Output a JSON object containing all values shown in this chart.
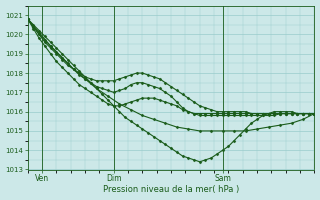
{
  "xlabel": "Pression niveau de la mer( hPa )",
  "bg_color": "#cce8e8",
  "grid_color": "#99cccc",
  "line_color": "#1a5c1a",
  "ylim": [
    1013.0,
    1021.5
  ],
  "yticks": [
    1013,
    1014,
    1015,
    1016,
    1017,
    1018,
    1019,
    1020,
    1021
  ],
  "xlim": [
    0,
    100
  ],
  "xtick_positions": [
    5,
    30,
    68
  ],
  "xtick_labels": [
    "Ven",
    "Dim",
    "Sam"
  ],
  "series": [
    {
      "x": [
        0,
        2,
        4,
        6,
        8,
        10,
        12,
        14,
        16,
        18,
        20,
        22,
        24,
        26,
        28,
        30,
        32,
        34,
        36,
        38,
        40,
        42,
        44,
        46,
        48,
        50,
        52,
        54,
        56,
        58,
        60,
        62,
        64,
        66,
        68,
        70,
        72,
        74,
        76,
        78,
        80,
        82,
        84,
        86,
        88,
        90,
        92,
        94,
        96,
        98,
        100
      ],
      "y": [
        1020.8,
        1020.5,
        1020.2,
        1019.9,
        1019.6,
        1019.3,
        1019.0,
        1018.7,
        1018.4,
        1018.1,
        1017.8,
        1017.5,
        1017.2,
        1016.9,
        1016.6,
        1016.3,
        1016.0,
        1015.7,
        1015.5,
        1015.3,
        1015.1,
        1014.9,
        1014.7,
        1014.5,
        1014.3,
        1014.1,
        1013.9,
        1013.7,
        1013.6,
        1013.5,
        1013.4,
        1013.5,
        1013.6,
        1013.8,
        1014.0,
        1014.2,
        1014.5,
        1014.8,
        1015.1,
        1015.4,
        1015.6,
        1015.8,
        1015.9,
        1016.0,
        1016.0,
        1016.0,
        1016.0,
        1015.9,
        1015.9,
        1015.9,
        1015.9
      ]
    },
    {
      "x": [
        0,
        2,
        4,
        6,
        8,
        10,
        12,
        14,
        16,
        18,
        20,
        22,
        24,
        26,
        28,
        30,
        32,
        34,
        36,
        38,
        40,
        42,
        44,
        46,
        48,
        50,
        52,
        54,
        56,
        58,
        60,
        62,
        64,
        66,
        68,
        70,
        72,
        74,
        76,
        78,
        80,
        82,
        84,
        86,
        88,
        90,
        92,
        94,
        96,
        98,
        100
      ],
      "y": [
        1020.8,
        1020.4,
        1020.0,
        1019.7,
        1019.4,
        1019.1,
        1018.8,
        1018.5,
        1018.2,
        1017.9,
        1017.7,
        1017.5,
        1017.3,
        1017.2,
        1017.1,
        1017.0,
        1017.1,
        1017.2,
        1017.4,
        1017.5,
        1017.5,
        1017.4,
        1017.3,
        1017.2,
        1017.0,
        1016.8,
        1016.5,
        1016.2,
        1016.0,
        1015.9,
        1015.8,
        1015.8,
        1015.8,
        1015.8,
        1015.8,
        1015.8,
        1015.8,
        1015.8,
        1015.8,
        1015.8,
        1015.8,
        1015.8,
        1015.8,
        1015.8,
        1015.9,
        1015.9,
        1015.9,
        1015.9,
        1015.9,
        1015.9,
        1015.9
      ]
    },
    {
      "x": [
        0,
        2,
        4,
        6,
        8,
        10,
        12,
        14,
        16,
        18,
        20,
        22,
        24,
        26,
        28,
        30,
        32,
        34,
        36,
        38,
        40,
        42,
        44,
        46,
        48,
        50,
        52,
        54,
        56,
        58,
        60,
        62,
        64,
        66,
        68,
        70,
        72,
        74,
        76,
        78,
        80,
        82,
        84,
        86,
        88,
        90,
        92,
        94,
        96,
        98,
        100
      ],
      "y": [
        1020.8,
        1020.4,
        1020.0,
        1019.6,
        1019.3,
        1019.0,
        1018.7,
        1018.4,
        1018.2,
        1018.0,
        1017.8,
        1017.7,
        1017.6,
        1017.6,
        1017.6,
        1017.6,
        1017.7,
        1017.8,
        1017.9,
        1018.0,
        1018.0,
        1017.9,
        1017.8,
        1017.7,
        1017.5,
        1017.3,
        1017.1,
        1016.9,
        1016.7,
        1016.5,
        1016.3,
        1016.2,
        1016.1,
        1016.0,
        1016.0,
        1016.0,
        1016.0,
        1016.0,
        1016.0,
        1015.9,
        1015.9,
        1015.9,
        1015.9,
        1015.9,
        1015.9,
        1015.9,
        1015.9,
        1015.9,
        1015.9,
        1015.9,
        1015.9
      ]
    },
    {
      "x": [
        0,
        2,
        4,
        6,
        8,
        10,
        12,
        14,
        16,
        18,
        20,
        22,
        24,
        26,
        28,
        30,
        32,
        34,
        36,
        38,
        40,
        42,
        44,
        46,
        48,
        50,
        52,
        54,
        56,
        58,
        60,
        62,
        64,
        66,
        68,
        70,
        72,
        74,
        76,
        78,
        80,
        82,
        84,
        86,
        88,
        90,
        92,
        94,
        96,
        98,
        100
      ],
      "y": [
        1020.8,
        1020.3,
        1019.8,
        1019.4,
        1019.0,
        1018.6,
        1018.3,
        1018.0,
        1017.7,
        1017.4,
        1017.2,
        1017.0,
        1016.8,
        1016.6,
        1016.4,
        1016.3,
        1016.3,
        1016.4,
        1016.5,
        1016.6,
        1016.7,
        1016.7,
        1016.7,
        1016.6,
        1016.5,
        1016.4,
        1016.3,
        1016.1,
        1016.0,
        1015.9,
        1015.9,
        1015.9,
        1015.9,
        1015.9,
        1015.9,
        1015.9,
        1015.9,
        1015.9,
        1015.9,
        1015.9,
        1015.9,
        1015.9,
        1015.9,
        1015.9,
        1015.9,
        1015.9,
        1015.9,
        1015.9,
        1015.9,
        1015.9,
        1015.9
      ]
    },
    {
      "x": [
        0,
        4,
        8,
        12,
        16,
        20,
        24,
        28,
        32,
        36,
        40,
        44,
        48,
        52,
        56,
        60,
        64,
        68,
        72,
        76,
        80,
        84,
        88,
        92,
        96,
        100
      ],
      "y": [
        1020.8,
        1020.1,
        1019.4,
        1018.8,
        1018.2,
        1017.7,
        1017.2,
        1016.8,
        1016.4,
        1016.1,
        1015.8,
        1015.6,
        1015.4,
        1015.2,
        1015.1,
        1015.0,
        1015.0,
        1015.0,
        1015.0,
        1015.0,
        1015.1,
        1015.2,
        1015.3,
        1015.4,
        1015.6,
        1015.9
      ]
    }
  ],
  "marker": "D",
  "markersize": 1.5,
  "linewidth": 0.8,
  "figsize": [
    3.2,
    2.0
  ],
  "dpi": 100
}
